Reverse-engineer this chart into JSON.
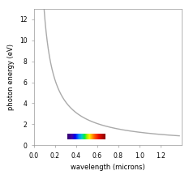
{
  "xlabel": "wavelength (microns)",
  "ylabel": "photon energy (eV)",
  "xlim": [
    0.0,
    1.4
  ],
  "ylim": [
    0,
    13
  ],
  "yticks": [
    0,
    2,
    4,
    6,
    8,
    10,
    12
  ],
  "xticks": [
    0.0,
    0.2,
    0.4,
    0.6,
    0.8,
    1.0,
    1.2
  ],
  "line_color": "#aaaaaa",
  "line_width": 1.0,
  "bg_color": "#ffffff",
  "hc_eV_um": 1.2398,
  "lam_min": 0.095,
  "lam_max": 1.38,
  "colorbar_wl_min": 0.32,
  "colorbar_wl_max": 0.68,
  "visible_colors": [
    [
      0.0,
      "#35006e"
    ],
    [
      0.12,
      "#4400aa"
    ],
    [
      0.2,
      "#0000ee"
    ],
    [
      0.3,
      "#0088ff"
    ],
    [
      0.38,
      "#00cccc"
    ],
    [
      0.45,
      "#00ee44"
    ],
    [
      0.52,
      "#aaee00"
    ],
    [
      0.58,
      "#ffee00"
    ],
    [
      0.64,
      "#ffaa00"
    ],
    [
      0.72,
      "#ff5500"
    ],
    [
      0.82,
      "#ee1100"
    ],
    [
      1.0,
      "#880000"
    ]
  ]
}
